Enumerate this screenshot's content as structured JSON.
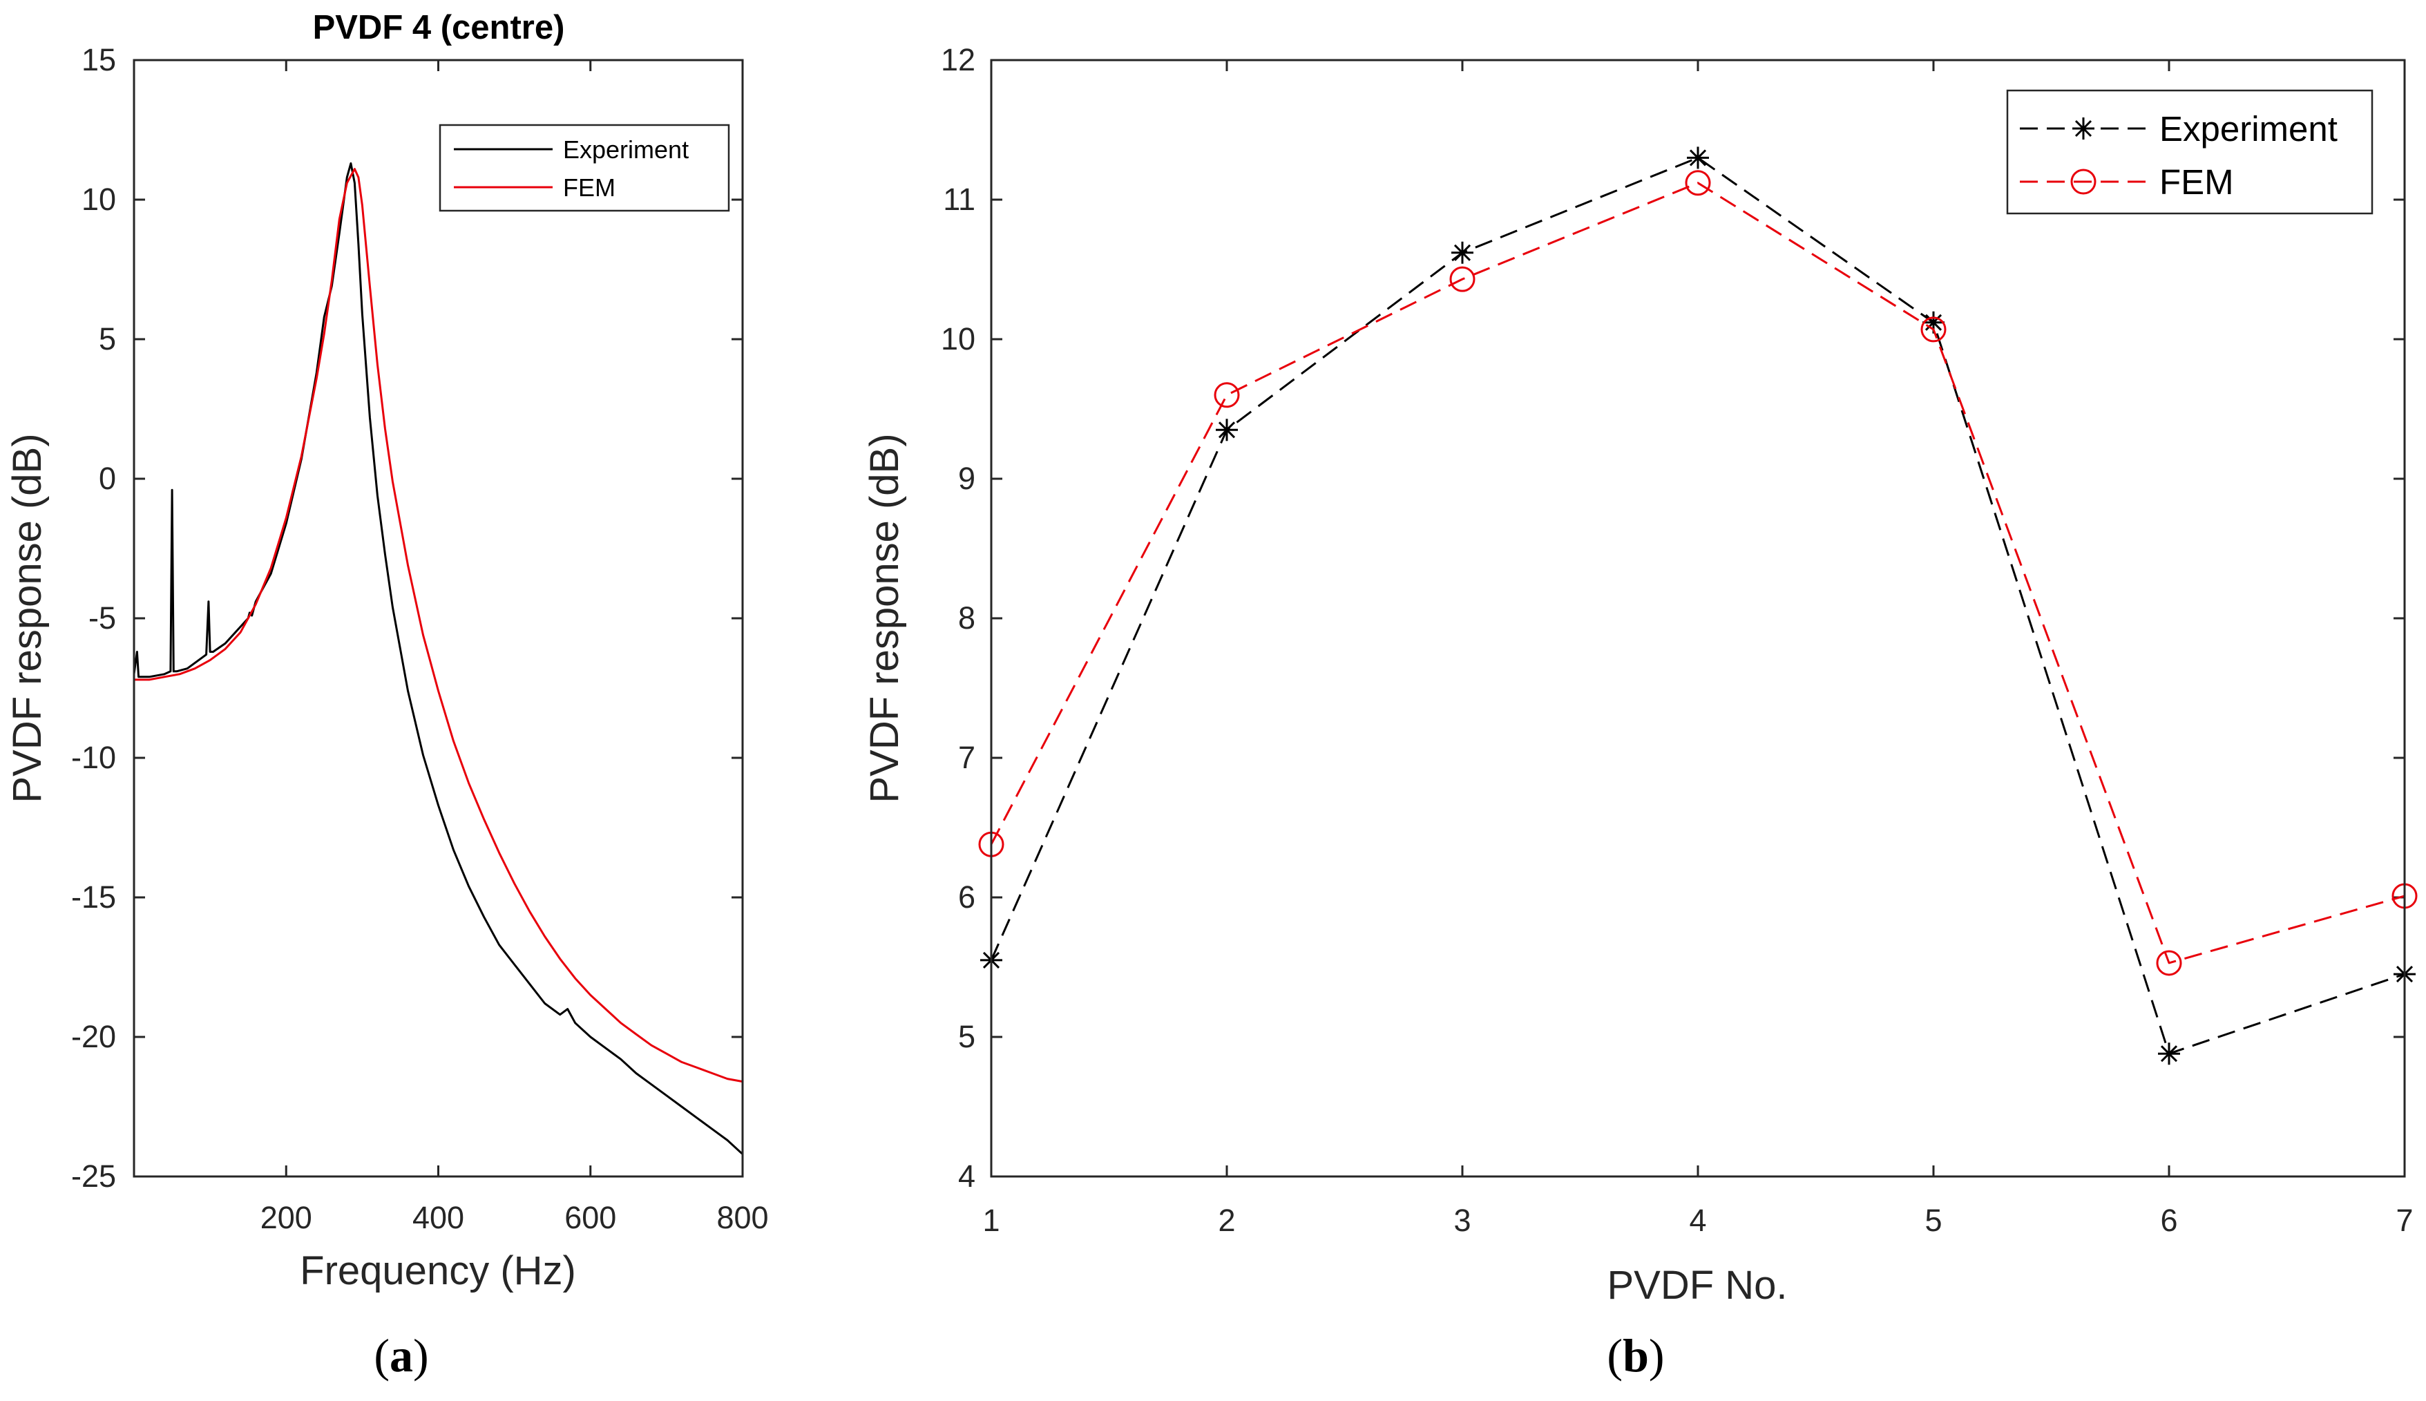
{
  "chart_data": [
    {
      "panel": "a",
      "panel_label": {
        "open": "(",
        "letter": "a",
        "close": ")"
      },
      "type": "line",
      "title": "PVDF 4 (centre)",
      "xlabel": "Frequency (Hz)",
      "ylabel": "PVDF response (dB)",
      "xlim": [
        0,
        800
      ],
      "ylim": [
        -25,
        15
      ],
      "xticks": [
        200,
        400,
        600,
        800
      ],
      "yticks": [
        15,
        10,
        5,
        0,
        -5,
        -10,
        -15,
        -20,
        -25
      ],
      "grid": false,
      "legend_position": "top-right",
      "series": [
        {
          "name": "Experiment",
          "color": "#000000",
          "x": [
            0,
            4,
            6,
            10,
            20,
            40,
            48,
            50,
            52,
            56,
            70,
            90,
            95,
            98,
            100,
            104,
            120,
            140,
            150,
            152,
            155,
            160,
            180,
            200,
            220,
            240,
            250,
            260,
            270,
            280,
            285,
            290,
            295,
            300,
            310,
            320,
            330,
            340,
            360,
            380,
            400,
            420,
            440,
            460,
            480,
            500,
            520,
            540,
            560,
            570,
            580,
            600,
            620,
            640,
            660,
            680,
            700,
            720,
            740,
            760,
            780,
            800
          ],
          "y": [
            -7.0,
            -6.2,
            -7.1,
            -7.1,
            -7.1,
            -7.0,
            -6.9,
            -0.4,
            -6.9,
            -6.9,
            -6.8,
            -6.4,
            -6.3,
            -4.4,
            -6.2,
            -6.2,
            -5.9,
            -5.3,
            -5.0,
            -4.8,
            -4.9,
            -4.4,
            -3.4,
            -1.6,
            0.7,
            3.8,
            5.8,
            6.9,
            8.8,
            10.8,
            11.3,
            10.6,
            8.4,
            5.9,
            2.2,
            -0.6,
            -2.7,
            -4.6,
            -7.6,
            -9.9,
            -11.7,
            -13.3,
            -14.6,
            -15.7,
            -16.7,
            -17.4,
            -18.1,
            -18.8,
            -19.2,
            -19.0,
            -19.5,
            -20.0,
            -20.4,
            -20.8,
            -21.3,
            -21.7,
            -22.1,
            -22.5,
            -22.9,
            -23.3,
            -23.7,
            -24.2
          ]
        },
        {
          "name": "FEM",
          "color": "#e8000b",
          "x": [
            0,
            20,
            40,
            60,
            80,
            100,
            120,
            140,
            160,
            180,
            200,
            220,
            240,
            250,
            260,
            270,
            280,
            290,
            295,
            300,
            310,
            320,
            330,
            340,
            360,
            380,
            400,
            420,
            440,
            460,
            480,
            500,
            520,
            540,
            560,
            580,
            600,
            620,
            640,
            660,
            680,
            700,
            720,
            740,
            760,
            780,
            800
          ],
          "y": [
            -7.2,
            -7.2,
            -7.1,
            -7.0,
            -6.8,
            -6.5,
            -6.1,
            -5.5,
            -4.5,
            -3.2,
            -1.4,
            0.8,
            3.6,
            5.2,
            7.1,
            9.3,
            10.6,
            11.1,
            10.8,
            9.8,
            6.9,
            4.1,
            1.8,
            -0.1,
            -3.1,
            -5.6,
            -7.6,
            -9.4,
            -10.9,
            -12.2,
            -13.4,
            -14.5,
            -15.5,
            -16.4,
            -17.2,
            -17.9,
            -18.5,
            -19.0,
            -19.5,
            -19.9,
            -20.3,
            -20.6,
            -20.9,
            -21.1,
            -21.3,
            -21.5,
            -21.6
          ]
        }
      ]
    },
    {
      "panel": "b",
      "panel_label": {
        "open": "(",
        "letter": "b",
        "close": ")"
      },
      "type": "line",
      "title": "",
      "xlabel": "PVDF No.",
      "ylabel": "PVDF response (dB)",
      "xlim": [
        1,
        7
      ],
      "ylim": [
        4,
        12
      ],
      "xticks": [
        1,
        2,
        3,
        4,
        5,
        6,
        7
      ],
      "yticks": [
        12,
        11,
        10,
        9,
        8,
        7,
        6,
        5,
        4
      ],
      "grid": false,
      "legend_position": "top-right",
      "series": [
        {
          "name": "Experiment",
          "color": "#000000",
          "marker": "asterisk",
          "x": [
            1,
            2,
            3,
            4,
            5,
            6,
            7
          ],
          "y": [
            5.55,
            9.35,
            10.62,
            11.3,
            10.12,
            4.88,
            5.45
          ]
        },
        {
          "name": "FEM",
          "color": "#e8000b",
          "marker": "circle",
          "x": [
            1,
            2,
            3,
            4,
            5,
            6,
            7
          ],
          "y": [
            6.38,
            9.6,
            10.43,
            11.12,
            10.07,
            5.53,
            6.01
          ]
        }
      ]
    }
  ]
}
